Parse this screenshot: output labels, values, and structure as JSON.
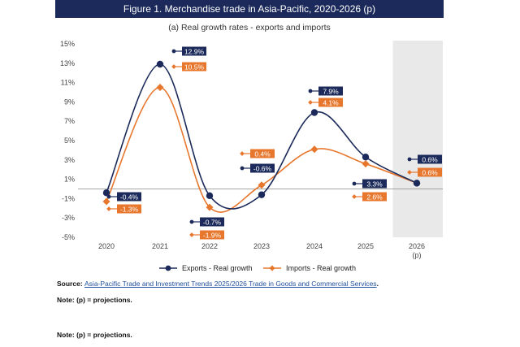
{
  "title": "Figure 1. Merchandise trade in Asia-Pacific, 2020-2026 (p)",
  "subtitle": "(a) Real growth rates - exports and imports",
  "colors": {
    "exports": "#1b2a5a",
    "imports": "#e8772e",
    "projection_band": "#e9e9e9",
    "axis": "#444444"
  },
  "chart_data": {
    "type": "line",
    "categories": [
      "2020",
      "2021",
      "2022",
      "2023",
      "2024",
      "2025",
      "2026"
    ],
    "last_category_suffix": "(p)",
    "ylim": [
      -5,
      15
    ],
    "yticks": [
      -5,
      -3,
      -1,
      1,
      3,
      5,
      7,
      9,
      11,
      13,
      15
    ],
    "ytick_labels": [
      "-5%",
      "-3%",
      "-1%",
      "1%",
      "3%",
      "5%",
      "7%",
      "9%",
      "11%",
      "13%",
      "15%"
    ],
    "projection_from": "2026",
    "series": [
      {
        "name": "Exports - Real growth",
        "values": [
          -0.4,
          12.9,
          -0.7,
          -0.6,
          7.9,
          3.3,
          0.6
        ],
        "labels": [
          "-0.4%",
          "12.9%",
          "-0.7%",
          "-0.6%",
          "7.9%",
          "3.3%",
          "0.6%"
        ]
      },
      {
        "name": "Imports - Real growth",
        "values": [
          -1.3,
          10.5,
          -1.9,
          0.4,
          4.1,
          2.6,
          0.6
        ],
        "labels": [
          "-1.3%",
          "10.5%",
          "-1.9%",
          "0.4%",
          "4.1%",
          "2.6%",
          "0.6%"
        ]
      }
    ]
  },
  "source": {
    "prefix": "Source: ",
    "link_text": "Asia-Pacific Trade and Investment Trends 2025/2026 Trade in Goods and Commercial Services",
    "suffix": "."
  },
  "notes": [
    "Note: (p) = projections.",
    "Note: (p) = projections."
  ]
}
